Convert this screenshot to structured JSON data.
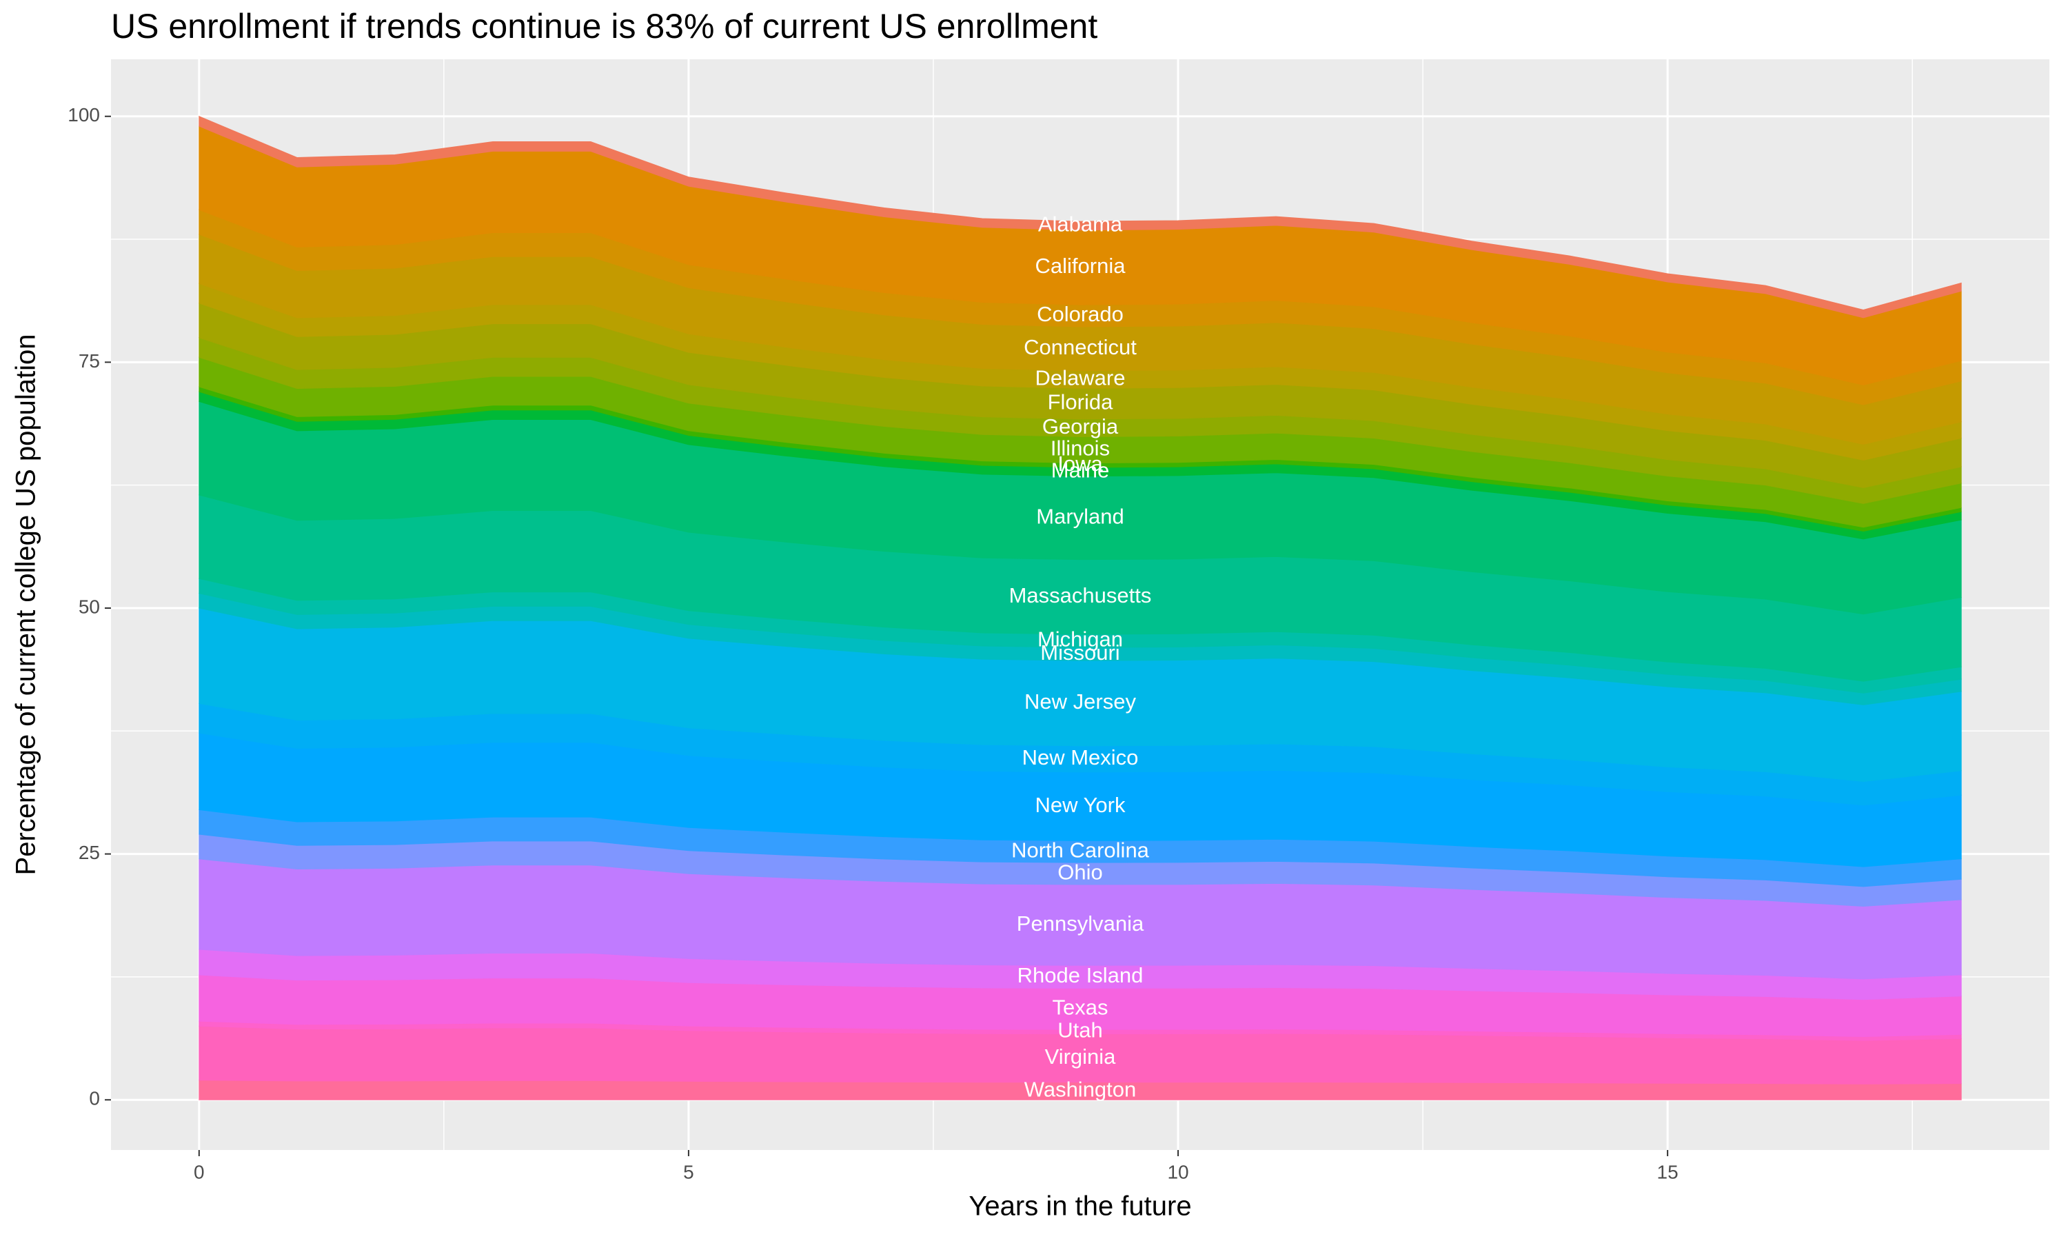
{
  "chart_data": {
    "type": "stacked_area",
    "title": "US enrollment if trends continue is 83% of current US enrollment",
    "x_label": "Years in the future",
    "y_label": "Percentage of current college US population",
    "x": [
      0,
      1,
      2,
      3,
      4,
      5,
      6,
      7,
      8,
      9,
      10,
      11,
      12,
      13,
      14,
      15,
      16,
      17,
      18
    ],
    "xlim": [
      -0.9,
      18.9
    ],
    "xticks": [
      0,
      5,
      10,
      15
    ],
    "ylim": [
      -5.1,
      105.8
    ],
    "yticks": [
      0,
      25,
      50,
      75,
      100
    ],
    "grid": true,
    "series": [
      {
        "name": "Alabama",
        "color": "#f0785a",
        "values": [
          1,
          0.96,
          0.96,
          0.97,
          0.97,
          0.94,
          0.92,
          0.91,
          0.9,
          0.89,
          0.89,
          0.9,
          0.89,
          0.87,
          0.86,
          0.84,
          0.83,
          0.8,
          0.83
        ]
      },
      {
        "name": "California",
        "color": "#e08b00",
        "values": [
          8.5,
          8.14,
          8.17,
          8.28,
          8.28,
          7.97,
          7.84,
          7.71,
          7.62,
          7.59,
          7.6,
          7.63,
          7.57,
          7.42,
          7.29,
          7.14,
          7.04,
          6.83,
          7.06
        ]
      },
      {
        "name": "Colorado",
        "color": "#d49200",
        "values": [
          2.5,
          2.4,
          2.4,
          2.44,
          2.44,
          2.35,
          2.31,
          2.27,
          2.24,
          2.23,
          2.24,
          2.25,
          2.23,
          2.18,
          2.15,
          2.1,
          2.07,
          2.01,
          2.08
        ]
      },
      {
        "name": "Connecticut",
        "color": "#c49a00",
        "values": [
          5,
          4.79,
          4.81,
          4.87,
          4.87,
          4.69,
          4.61,
          4.54,
          4.48,
          4.47,
          4.47,
          4.49,
          4.46,
          4.37,
          4.29,
          4.2,
          4.14,
          4.02,
          4.15
        ]
      },
      {
        "name": "Delaware",
        "color": "#b8a000",
        "values": [
          2,
          1.92,
          1.92,
          1.95,
          1.95,
          1.88,
          1.84,
          1.81,
          1.79,
          1.79,
          1.79,
          1.8,
          1.78,
          1.75,
          1.72,
          1.68,
          1.66,
          1.61,
          1.66
        ]
      },
      {
        "name": "Florida",
        "color": "#a3a500",
        "values": [
          3.5,
          3.35,
          3.36,
          3.41,
          3.41,
          3.28,
          3.23,
          3.17,
          3.14,
          3.13,
          3.13,
          3.14,
          3.12,
          3.06,
          3,
          2.94,
          2.9,
          2.81,
          2.91
        ]
      },
      {
        "name": "Georgia",
        "color": "#8fab00",
        "values": [
          2,
          1.92,
          1.92,
          1.95,
          1.95,
          1.88,
          1.84,
          1.81,
          1.79,
          1.79,
          1.79,
          1.8,
          1.78,
          1.75,
          1.72,
          1.68,
          1.66,
          1.61,
          1.66
        ]
      },
      {
        "name": "Illinois",
        "color": "#6fb100",
        "values": [
          3,
          2.87,
          2.88,
          2.92,
          2.92,
          2.81,
          2.77,
          2.72,
          2.69,
          2.68,
          2.68,
          2.69,
          2.67,
          2.62,
          2.57,
          2.52,
          2.48,
          2.41,
          2.49
        ]
      },
      {
        "name": "Iowa",
        "color": "#3cb300",
        "values": [
          0.5,
          0.48,
          0.48,
          0.49,
          0.49,
          0.47,
          0.46,
          0.45,
          0.45,
          0.45,
          0.45,
          0.45,
          0.45,
          0.44,
          0.43,
          0.42,
          0.41,
          0.4,
          0.42
        ]
      },
      {
        "name": "Maine",
        "color": "#00b937",
        "values": [
          1,
          0.96,
          0.96,
          0.97,
          0.97,
          0.94,
          0.92,
          0.91,
          0.9,
          0.89,
          0.89,
          0.9,
          0.89,
          0.87,
          0.86,
          0.84,
          0.83,
          0.8,
          0.83
        ]
      },
      {
        "name": "Maryland",
        "color": "#00bf74",
        "values": [
          9.5,
          9.1,
          9.13,
          9.25,
          9.25,
          8.91,
          8.76,
          8.62,
          8.51,
          8.48,
          8.49,
          8.53,
          8.46,
          8.29,
          8.15,
          7.98,
          7.87,
          7.63,
          7.89
        ]
      },
      {
        "name": "Massachusetts",
        "color": "#00c08d",
        "values": [
          8.5,
          8.14,
          8.17,
          8.28,
          8.28,
          7.97,
          7.84,
          7.71,
          7.62,
          7.59,
          7.6,
          7.63,
          7.57,
          7.42,
          7.29,
          7.14,
          7.04,
          6.83,
          7.06
        ]
      },
      {
        "name": "Michigan",
        "color": "#00bfa8",
        "values": [
          1.5,
          1.44,
          1.44,
          1.46,
          1.46,
          1.41,
          1.38,
          1.36,
          1.34,
          1.34,
          1.34,
          1.35,
          1.34,
          1.31,
          1.29,
          1.26,
          1.24,
          1.2,
          1.25
        ]
      },
      {
        "name": "Missouri",
        "color": "#00bcc0",
        "values": [
          1.5,
          1.44,
          1.44,
          1.46,
          1.46,
          1.41,
          1.38,
          1.36,
          1.34,
          1.34,
          1.34,
          1.35,
          1.34,
          1.31,
          1.29,
          1.26,
          1.24,
          1.2,
          1.25
        ]
      },
      {
        "name": "New Jersey",
        "color": "#00b7e8",
        "values": [
          9.7,
          9.29,
          9.32,
          9.45,
          9.45,
          9.1,
          8.94,
          8.8,
          8.69,
          8.66,
          8.67,
          8.71,
          8.64,
          8.47,
          8.32,
          8.15,
          8.03,
          7.79,
          8.05
        ]
      },
      {
        "name": "New Mexico",
        "color": "#00aef5",
        "values": [
          3,
          2.87,
          2.88,
          2.92,
          2.92,
          2.81,
          2.77,
          2.72,
          2.69,
          2.68,
          2.68,
          2.69,
          2.67,
          2.62,
          2.57,
          2.52,
          2.48,
          2.41,
          2.49
        ]
      },
      {
        "name": "New York",
        "color": "#00a8ff",
        "values": [
          7.8,
          7.47,
          7.5,
          7.6,
          7.6,
          7.32,
          7.19,
          7.07,
          6.99,
          6.97,
          6.97,
          7,
          6.95,
          6.81,
          6.69,
          6.55,
          6.46,
          6.26,
          6.47
        ]
      },
      {
        "name": "North Carolina",
        "color": "#359eff",
        "values": [
          2.5,
          2.4,
          2.4,
          2.44,
          2.44,
          2.35,
          2.31,
          2.27,
          2.24,
          2.23,
          2.24,
          2.25,
          2.23,
          2.18,
          2.15,
          2.1,
          2.07,
          2.01,
          2.08
        ]
      },
      {
        "name": "Ohio",
        "color": "#7f96ff",
        "values": [
          2.5,
          2.4,
          2.4,
          2.44,
          2.44,
          2.35,
          2.31,
          2.27,
          2.24,
          2.23,
          2.24,
          2.25,
          2.23,
          2.18,
          2.15,
          2.1,
          2.07,
          2.01,
          2.08
        ]
      },
      {
        "name": "Pennsylvania",
        "color": "#c07bff",
        "values": [
          9.2,
          8.81,
          8.84,
          8.96,
          8.96,
          8.63,
          8.48,
          8.34,
          8.24,
          8.22,
          8.22,
          8.26,
          8.2,
          8.03,
          7.89,
          7.73,
          7.62,
          7.39,
          7.64
        ]
      },
      {
        "name": "Rhode Island",
        "color": "#e36ef6",
        "values": [
          2.6,
          2.49,
          2.5,
          2.53,
          2.53,
          2.44,
          2.4,
          2.36,
          2.33,
          2.32,
          2.32,
          2.33,
          2.32,
          2.27,
          2.23,
          2.18,
          2.15,
          2.09,
          2.16
        ]
      },
      {
        "name": "Texas",
        "color": "#f663e0",
        "values": [
          4.7,
          4.5,
          4.52,
          4.58,
          4.58,
          4.41,
          4.33,
          4.26,
          4.21,
          4.2,
          4.2,
          4.22,
          4.19,
          4.1,
          4.03,
          3.95,
          3.89,
          3.77,
          3.9
        ]
      },
      {
        "name": "Utah",
        "color": "#fe61cc",
        "values": [
          0.5,
          0.48,
          0.48,
          0.49,
          0.49,
          0.47,
          0.46,
          0.45,
          0.45,
          0.45,
          0.45,
          0.45,
          0.45,
          0.44,
          0.43,
          0.42,
          0.41,
          0.4,
          0.42
        ]
      },
      {
        "name": "Virginia",
        "color": "#ff62bc",
        "values": [
          5.5,
          5.27,
          5.29,
          5.36,
          5.36,
          5.16,
          5.07,
          4.99,
          4.93,
          4.91,
          4.92,
          4.94,
          4.9,
          4.8,
          4.72,
          4.62,
          4.55,
          4.42,
          4.57
        ]
      },
      {
        "name": "Washington",
        "color": "#ff6c9a",
        "values": [
          2,
          1.92,
          1.92,
          1.95,
          1.95,
          1.88,
          1.84,
          1.81,
          1.79,
          1.79,
          1.79,
          1.8,
          1.78,
          1.75,
          1.72,
          1.68,
          1.66,
          1.61,
          1.66
        ]
      }
    ]
  }
}
